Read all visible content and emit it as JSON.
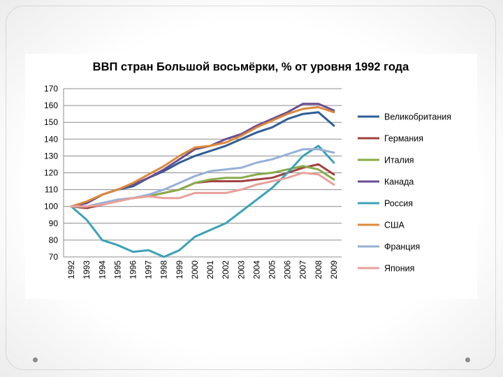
{
  "chart_data": {
    "type": "line",
    "title": "ВВП стран Большой восьмёрки, % от уровня 1992 года",
    "xlabel": "",
    "ylabel": "",
    "ylim": [
      70,
      170
    ],
    "yticks": [
      70,
      80,
      90,
      100,
      110,
      120,
      130,
      140,
      150,
      160,
      170
    ],
    "grid": true,
    "legend_position": "right",
    "categories": [
      "1992",
      "1993",
      "1994",
      "1995",
      "1996",
      "1997",
      "1998",
      "1999",
      "2000",
      "2001",
      "2002",
      "2003",
      "2004",
      "2005",
      "2006",
      "2007",
      "2008",
      "2009"
    ],
    "series": [
      {
        "name": "Великобритания",
        "color": "#2f5d95",
        "values": [
          100,
          102,
          107,
          110,
          112,
          117,
          121,
          126,
          130,
          133,
          136,
          140,
          144,
          147,
          152,
          155,
          156,
          148
        ]
      },
      {
        "name": "Германия",
        "color": "#a0403d",
        "values": [
          100,
          99,
          101,
          104,
          105,
          106,
          108,
          110,
          114,
          115,
          115,
          115,
          116,
          117,
          120,
          123,
          125,
          119
        ]
      },
      {
        "name": "Италия",
        "color": "#8aab4a",
        "values": [
          100,
          100,
          102,
          104,
          105,
          106,
          108,
          110,
          114,
          116,
          117,
          117,
          119,
          120,
          122,
          124,
          122,
          116
        ]
      },
      {
        "name": "Канада",
        "color": "#6a4c93",
        "values": [
          100,
          102,
          107,
          110,
          113,
          117,
          122,
          128,
          134,
          136,
          140,
          143,
          148,
          152,
          156,
          161,
          161,
          157
        ]
      },
      {
        "name": "Россия",
        "color": "#3aa2b6",
        "values": [
          100,
          92,
          80,
          77,
          73,
          74,
          70,
          74,
          82,
          86,
          90,
          97,
          104,
          111,
          120,
          130,
          136,
          126
        ]
      },
      {
        "name": "США",
        "color": "#dc8a3a",
        "values": [
          100,
          103,
          107,
          110,
          114,
          119,
          124,
          130,
          135,
          136,
          138,
          142,
          147,
          151,
          155,
          158,
          159,
          156
        ]
      },
      {
        "name": "Франция",
        "color": "#97b0d6",
        "values": [
          100,
          100,
          102,
          104,
          105,
          107,
          110,
          114,
          118,
          121,
          122,
          123,
          126,
          128,
          131,
          134,
          134,
          132
        ]
      },
      {
        "name": "Япония",
        "color": "#e8a19c",
        "values": [
          100,
          100,
          101,
          103,
          105,
          106,
          105,
          105,
          108,
          108,
          108,
          110,
          113,
          115,
          117,
          120,
          119,
          113
        ]
      }
    ]
  }
}
